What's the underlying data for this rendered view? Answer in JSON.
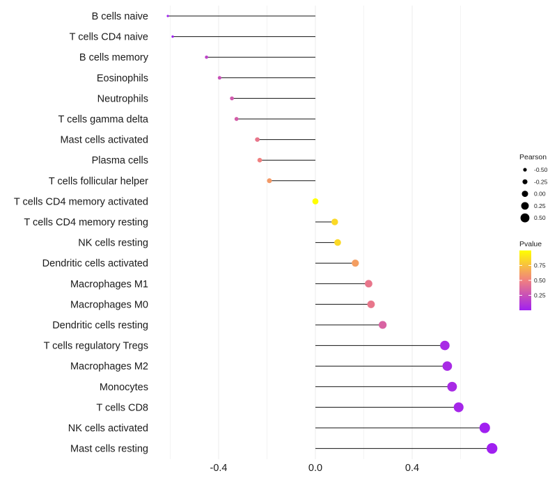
{
  "chart_data": {
    "type": "lollipop",
    "title": "",
    "xlabel": "",
    "ylabel": "",
    "xlim": [
      -0.605,
      0.735
    ],
    "x_ticks": [
      -0.4,
      0.0,
      0.4
    ],
    "x_tick_labels": [
      "-0.4",
      "0.0",
      "0.4"
    ],
    "grid": true,
    "categories": [
      "B cells naive",
      "T cells CD4 naive",
      "B cells memory",
      "Eosinophils",
      "Neutrophils",
      "T cells gamma delta",
      "Mast cells activated",
      "Plasma cells",
      "T cells follicular helper",
      "T cells CD4 memory activated",
      "T cells CD4 memory resting",
      "NK cells resting",
      "Dendritic cells activated",
      "Macrophages M1",
      "Macrophages M0",
      "Dendritic cells resting",
      "T cells regulatory  Tregs",
      "Macrophages M2",
      "Monocytes",
      "T cells CD8",
      "NK cells activated",
      "Mast cells resting"
    ],
    "pearson": [
      -0.61,
      -0.59,
      -0.45,
      -0.396,
      -0.345,
      -0.326,
      -0.24,
      -0.23,
      -0.19,
      0.0,
      0.08,
      0.092,
      0.165,
      0.22,
      0.23,
      0.278,
      0.535,
      0.545,
      0.565,
      0.592,
      0.7,
      0.73
    ],
    "pvalue": [
      0.0,
      0.0,
      0.18,
      0.25,
      0.3,
      0.32,
      0.45,
      0.5,
      0.6,
      1.0,
      0.85,
      0.85,
      0.62,
      0.45,
      0.45,
      0.35,
      0.05,
      0.05,
      0.05,
      0.03,
      0.0,
      0.0
    ],
    "legend": {
      "size_title": "Pearson",
      "size_labels": [
        "-0.50",
        "-0.25",
        "0.00",
        "0.25",
        "0.50"
      ],
      "size_values": [
        -0.5,
        -0.25,
        0.0,
        0.25,
        0.5
      ],
      "color_title": "Pvalue",
      "color_labels": [
        "0.75",
        "0.50",
        "0.25"
      ],
      "color_values": [
        0.75,
        0.5,
        0.25
      ],
      "color_scale": [
        "#a020f0",
        "#f08080",
        "#ffff00"
      ],
      "placement": "right"
    }
  }
}
